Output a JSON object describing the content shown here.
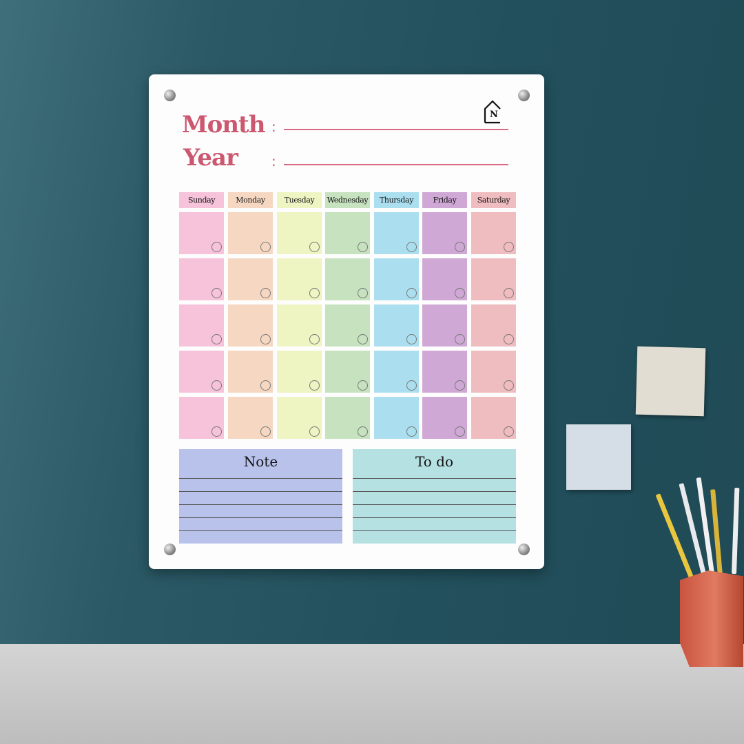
{
  "board": {
    "month_label": "Month",
    "year_label": "Year",
    "colon": ":",
    "logo_text": "N",
    "days": [
      {
        "label": "Sunday",
        "color": "#f6c3da"
      },
      {
        "label": "Monday",
        "color": "#f5d7c2"
      },
      {
        "label": "Tuesday",
        "color": "#eef5c2"
      },
      {
        "label": "Wednesday",
        "color": "#c6e2bf"
      },
      {
        "label": "Thursday",
        "color": "#abdff0"
      },
      {
        "label": "Friday",
        "color": "#cfa8d5"
      },
      {
        "label": "Saturday",
        "color": "#efbcbf"
      }
    ],
    "weeks": 5,
    "note": {
      "label": "Note",
      "color": "#b8c2ea"
    },
    "todo": {
      "label": "To do",
      "color": "#b6e1e3"
    }
  },
  "scene": {
    "wall_color": "#24505c",
    "floor_color": "#c8c8c8",
    "sticky_notes": [
      {
        "color": "#e2ddd2"
      },
      {
        "color": "#d5dde6"
      }
    ],
    "cup_color": "#d8664c"
  }
}
